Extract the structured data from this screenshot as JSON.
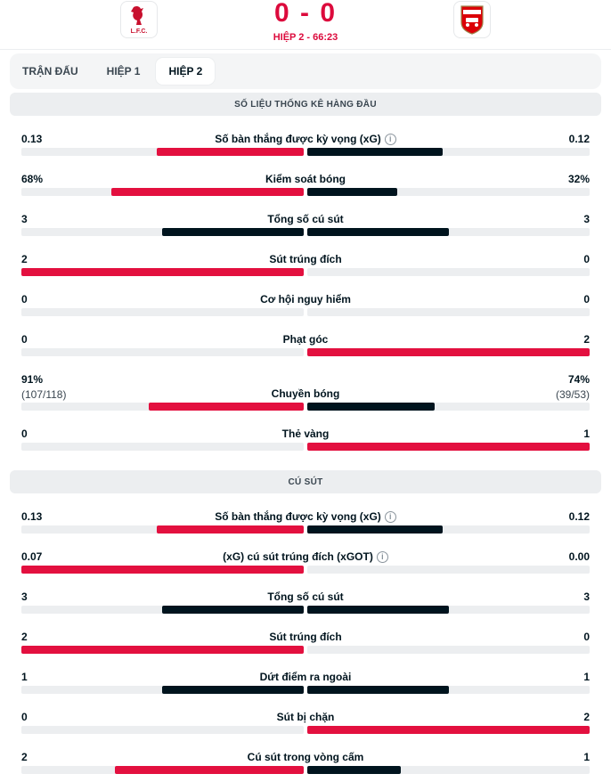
{
  "match": {
    "score": "0 - 0",
    "period": "HIỆP 2 - 66:23",
    "home_logo": "liverpool-logo",
    "away_logo": "arsenal-logo"
  },
  "tabs": [
    {
      "label": "TRẬN ĐẤU",
      "active": false
    },
    {
      "label": "HIỆP 1",
      "active": false
    },
    {
      "label": "HIỆP 2",
      "active": true
    }
  ],
  "colors": {
    "accent": "#dc0a3c",
    "bar_lead": "#e3103f",
    "bar_trail": "#00141e"
  },
  "sections": [
    {
      "title": "SỐ LIỆU THỐNG KÊ HÀNG ĐẦU",
      "stats": [
        {
          "label": "Số bàn thắng được kỳ vọng (xG)",
          "info": true,
          "home": "0.13",
          "away": "0.12",
          "home_share": 0.52,
          "away_share": 0.48,
          "leader": "home"
        },
        {
          "label": "Kiểm soát bóng",
          "info": false,
          "home": "68%",
          "away": "32%",
          "home_share": 0.68,
          "away_share": 0.32,
          "leader": "home"
        },
        {
          "label": "Tổng số cú sút",
          "info": false,
          "home": "3",
          "away": "3",
          "home_share": 0.5,
          "away_share": 0.5,
          "leader": "none"
        },
        {
          "label": "Sút trúng đích",
          "info": false,
          "home": "2",
          "away": "0",
          "home_share": 1.0,
          "away_share": 0.0,
          "leader": "home"
        },
        {
          "label": "Cơ hội nguy hiểm",
          "info": false,
          "home": "0",
          "away": "0",
          "home_share": 0.0,
          "away_share": 0.0,
          "leader": "none"
        },
        {
          "label": "Phạt góc",
          "info": false,
          "home": "0",
          "away": "2",
          "home_share": 0.0,
          "away_share": 1.0,
          "leader": "away"
        },
        {
          "label": "Chuyền bóng",
          "info": false,
          "home": "91%",
          "home_sub": "(107/118)",
          "away": "74%",
          "away_sub": "(39/53)",
          "home_share": 0.55,
          "away_share": 0.45,
          "leader": "home"
        },
        {
          "label": "Thẻ vàng",
          "info": false,
          "home": "0",
          "away": "1",
          "home_share": 0.0,
          "away_share": 1.0,
          "leader": "away"
        }
      ]
    },
    {
      "title": "CÚ SÚT",
      "stats": [
        {
          "label": "Số bàn thắng được kỳ vọng (xG)",
          "info": true,
          "home": "0.13",
          "away": "0.12",
          "home_share": 0.52,
          "away_share": 0.48,
          "leader": "home"
        },
        {
          "label": "(xG) cú sút trúng đích (xGOT)",
          "info": true,
          "home": "0.07",
          "away": "0.00",
          "home_share": 1.0,
          "away_share": 0.0,
          "leader": "home"
        },
        {
          "label": "Tổng số cú sút",
          "info": false,
          "home": "3",
          "away": "3",
          "home_share": 0.5,
          "away_share": 0.5,
          "leader": "none"
        },
        {
          "label": "Sút trúng đích",
          "info": false,
          "home": "2",
          "away": "0",
          "home_share": 1.0,
          "away_share": 0.0,
          "leader": "home"
        },
        {
          "label": "Dứt điểm ra ngoài",
          "info": false,
          "home": "1",
          "away": "1",
          "home_share": 0.5,
          "away_share": 0.5,
          "leader": "none"
        },
        {
          "label": "Sút bị chặn",
          "info": false,
          "home": "0",
          "away": "2",
          "home_share": 0.0,
          "away_share": 1.0,
          "leader": "away"
        },
        {
          "label": "Cú sút trong vòng cấm",
          "info": false,
          "home": "2",
          "away": "1",
          "home_share": 0.67,
          "away_share": 0.33,
          "leader": "home"
        }
      ]
    }
  ]
}
